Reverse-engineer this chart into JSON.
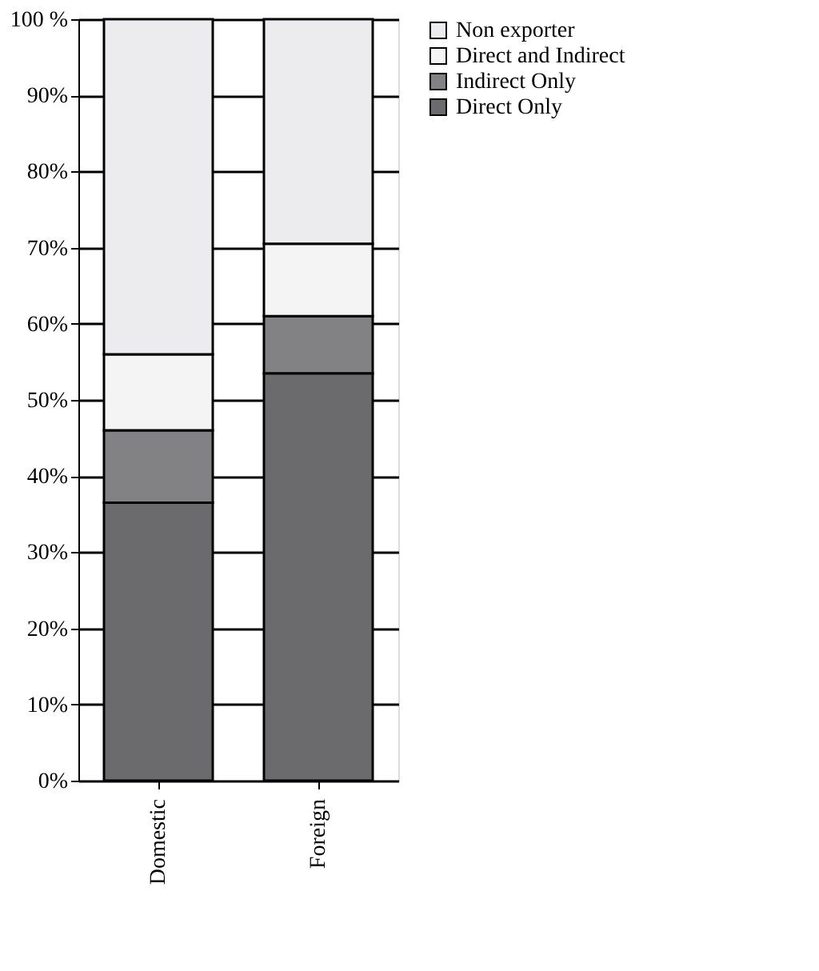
{
  "chart_data": {
    "type": "bar",
    "stacked": true,
    "categories": [
      "Domestic",
      "Foreign"
    ],
    "series": [
      {
        "name": "Direct Only",
        "color": "#6b6b6d",
        "values": [
          36.5,
          53.5
        ]
      },
      {
        "name": "Indirect Only",
        "color": "#828284",
        "values": [
          9.5,
          7.5
        ]
      },
      {
        "name": "Direct and Indirect",
        "color": "#f4f4f4",
        "values": [
          10,
          9.5
        ]
      },
      {
        "name": "Non exporter",
        "color": "#ececee",
        "values": [
          44,
          29.5
        ]
      }
    ],
    "ylim": [
      0,
      100
    ],
    "yticks": [
      {
        "value": 0,
        "label": "0%"
      },
      {
        "value": 10,
        "label": "10%"
      },
      {
        "value": 20,
        "label": "20%"
      },
      {
        "value": 30,
        "label": "30%"
      },
      {
        "value": 40,
        "label": "40%"
      },
      {
        "value": 50,
        "label": "50%"
      },
      {
        "value": 60,
        "label": "60%"
      },
      {
        "value": 70,
        "label": "70%"
      },
      {
        "value": 80,
        "label": "80%"
      },
      {
        "value": 90,
        "label": "90%"
      },
      {
        "value": 100,
        "label": "100 %"
      }
    ],
    "grid": "y",
    "legend": "top right"
  }
}
